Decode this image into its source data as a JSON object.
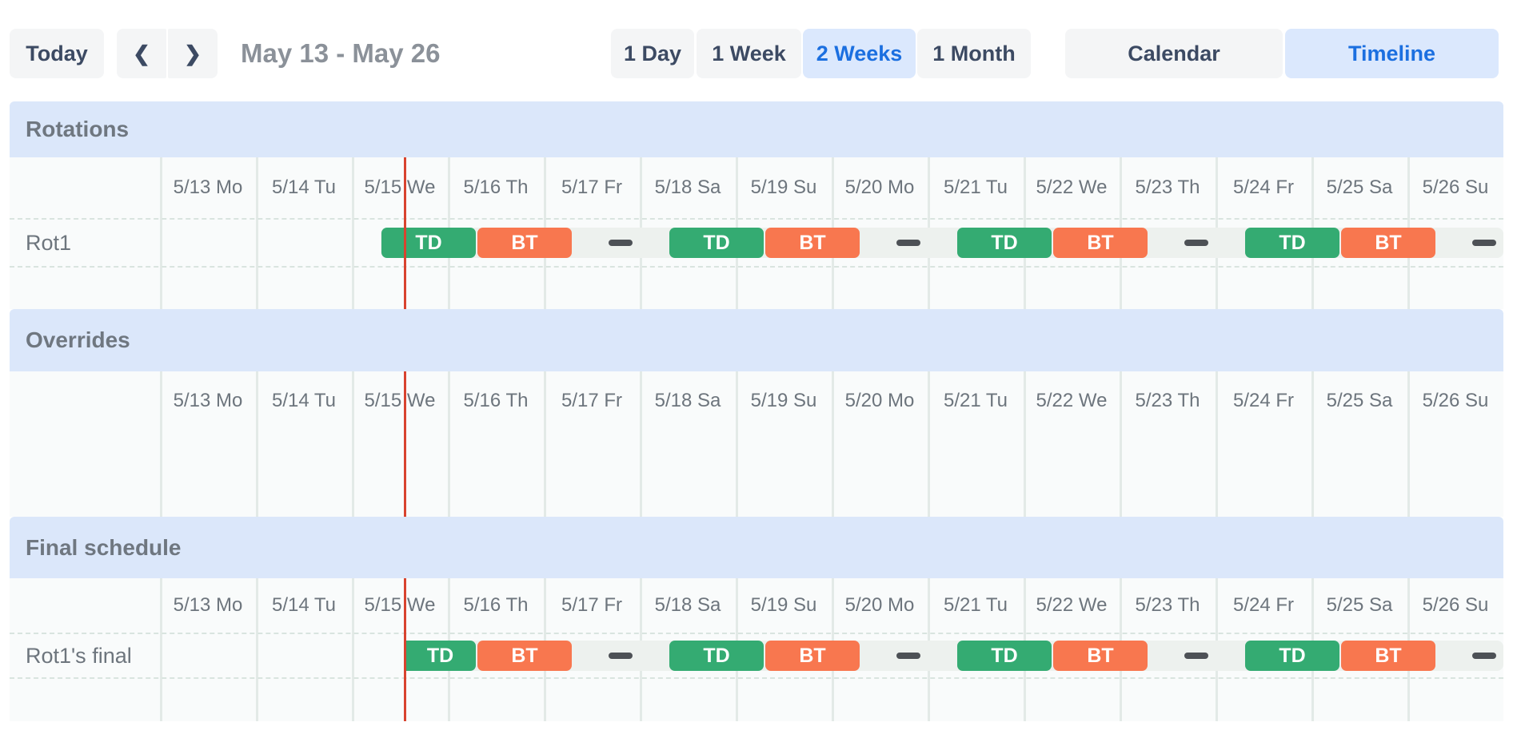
{
  "toolbar": {
    "today_label": "Today",
    "prev_icon": "chevron-left",
    "prev_glyph": "❮",
    "next_icon": "chevron-right",
    "next_glyph": "❯",
    "title": "May 13 - May 26",
    "view_buttons": [
      {
        "label": "1 Day",
        "active": false
      },
      {
        "label": "1 Week",
        "active": false
      },
      {
        "label": "2 Weeks",
        "active": true
      },
      {
        "label": "1 Month",
        "active": false
      }
    ],
    "mode_buttons": [
      {
        "label": "Calendar",
        "active": false
      },
      {
        "label": "Timeline",
        "active": true
      }
    ]
  },
  "timeline": {
    "dates": [
      "5/13 Mo",
      "5/14 Tu",
      "5/15 We",
      "5/16 Th",
      "5/17 Fr",
      "5/18 Sa",
      "5/19 Su",
      "5/20 Mo",
      "5/21 Tu",
      "5/22 We",
      "5/23 Th",
      "5/24 Fr",
      "5/25 Sa",
      "5/26 Su"
    ],
    "days_total": 14,
    "now_day": 2.55,
    "sections": [
      {
        "name": "Rotations",
        "rows": [
          {
            "label": "Rot1",
            "track_start": 2.3,
            "track_end": 14,
            "segments": [
              {
                "type": "shift",
                "label": "TD",
                "start": 2.3,
                "end": 3.3
              },
              {
                "type": "shift",
                "label": "BT",
                "start": 3.3,
                "end": 4.3
              },
              {
                "type": "gap",
                "start": 4.3,
                "end": 5.3
              },
              {
                "type": "shift",
                "label": "TD",
                "start": 5.3,
                "end": 6.3
              },
              {
                "type": "shift",
                "label": "BT",
                "start": 6.3,
                "end": 7.3
              },
              {
                "type": "gap",
                "start": 7.3,
                "end": 8.3
              },
              {
                "type": "shift",
                "label": "TD",
                "start": 8.3,
                "end": 9.3
              },
              {
                "type": "shift",
                "label": "BT",
                "start": 9.3,
                "end": 10.3
              },
              {
                "type": "gap",
                "start": 10.3,
                "end": 11.3
              },
              {
                "type": "shift",
                "label": "TD",
                "start": 11.3,
                "end": 12.3
              },
              {
                "type": "shift",
                "label": "BT",
                "start": 12.3,
                "end": 13.3
              },
              {
                "type": "gap",
                "start": 13.3,
                "end": 14
              }
            ]
          }
        ]
      },
      {
        "name": "Overrides",
        "rows": []
      },
      {
        "name": "Final schedule",
        "rows": [
          {
            "label": "Rot1's final",
            "track_start": 2.55,
            "track_end": 14,
            "segments": [
              {
                "type": "shift",
                "label": "TD",
                "start": 2.55,
                "end": 3.3,
                "clipped_start": true
              },
              {
                "type": "shift",
                "label": "BT",
                "start": 3.3,
                "end": 4.3
              },
              {
                "type": "gap",
                "start": 4.3,
                "end": 5.3
              },
              {
                "type": "shift",
                "label": "TD",
                "start": 5.3,
                "end": 6.3
              },
              {
                "type": "shift",
                "label": "BT",
                "start": 6.3,
                "end": 7.3
              },
              {
                "type": "gap",
                "start": 7.3,
                "end": 8.3
              },
              {
                "type": "shift",
                "label": "TD",
                "start": 8.3,
                "end": 9.3
              },
              {
                "type": "shift",
                "label": "BT",
                "start": 9.3,
                "end": 10.3
              },
              {
                "type": "gap",
                "start": 10.3,
                "end": 11.3
              },
              {
                "type": "shift",
                "label": "TD",
                "start": 11.3,
                "end": 12.3
              },
              {
                "type": "shift",
                "label": "BT",
                "start": 12.3,
                "end": 13.3
              },
              {
                "type": "gap",
                "start": 13.3,
                "end": 14
              }
            ]
          }
        ]
      }
    ]
  },
  "colors": {
    "shift_td": "#34ab72",
    "shift_bt": "#f8774f",
    "track": "#edf1ee",
    "gap_dash": "#4d5156",
    "now_line": "#d8432f",
    "section_band": "#dbe7fa",
    "selected_button_bg": "#dbe8fd",
    "accent_blue": "#1b6fe0"
  }
}
